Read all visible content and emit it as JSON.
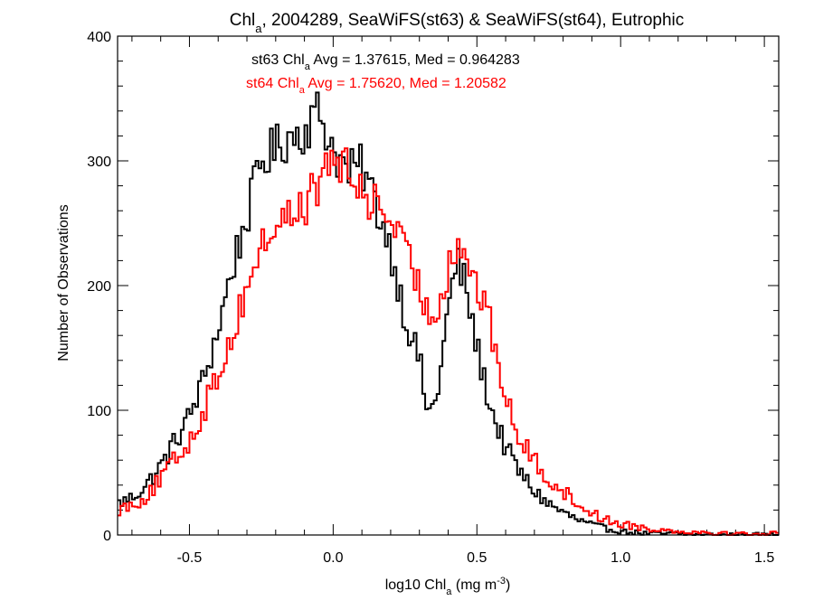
{
  "chart_data": {
    "type": "histogram-step",
    "title": {
      "pre": "Chl",
      "sub": "a",
      "post": ", 2004289, SeaWiFS(st63) & SeaWiFS(st64), Eutrophic"
    },
    "xlabel": {
      "pre": "log10 Chl",
      "sub": "a",
      "mid": " (mg m",
      "sup": "-3",
      "post": ")"
    },
    "ylabel": "Number of Observations",
    "xlim": [
      -0.75,
      1.55
    ],
    "ylim": [
      0,
      400
    ],
    "xticks": [
      -0.5,
      0.0,
      0.5,
      1.0,
      1.5
    ],
    "xtick_labels": [
      "-0.5",
      "0.0",
      "0.5",
      "1.0",
      "1.5"
    ],
    "yticks": [
      0,
      100,
      200,
      300,
      400
    ],
    "ytick_labels": [
      "0",
      "100",
      "200",
      "300",
      "400"
    ],
    "bin_width": 0.01,
    "annotations": [
      {
        "pre": "st63 Chl",
        "sub": "a",
        "post": " Avg = 1.37615, Med = 0.964283",
        "color": "#000000"
      },
      {
        "pre": "st64 Chl",
        "sub": "a",
        "post": " Avg = 1.75620, Med = 1.20582",
        "color": "#ff0000"
      }
    ],
    "series": [
      {
        "color": "#000000",
        "x": [
          -0.75,
          -0.7,
          -0.65,
          -0.6,
          -0.55,
          -0.5,
          -0.45,
          -0.4,
          -0.35,
          -0.3,
          -0.25,
          -0.2,
          -0.15,
          -0.1,
          -0.05,
          0.0,
          0.05,
          0.1,
          0.15,
          0.2,
          0.25,
          0.3,
          0.33,
          0.36,
          0.4,
          0.43,
          0.46,
          0.5,
          0.55,
          0.6,
          0.65,
          0.7,
          0.75,
          0.8,
          0.85,
          0.9,
          0.95,
          1.0,
          1.05,
          1.1,
          1.2,
          1.3,
          1.4,
          1.55
        ],
        "y": [
          25,
          30,
          40,
          55,
          75,
          95,
          125,
          165,
          215,
          255,
          300,
          310,
          320,
          325,
          340,
          310,
          290,
          295,
          265,
          230,
          175,
          140,
          95,
          110,
          180,
          220,
          200,
          150,
          100,
          70,
          50,
          35,
          25,
          18,
          12,
          8,
          5,
          3,
          2,
          1,
          1,
          0,
          0,
          0
        ]
      },
      {
        "color": "#ff0000",
        "x": [
          -0.75,
          -0.7,
          -0.65,
          -0.6,
          -0.55,
          -0.5,
          -0.45,
          -0.4,
          -0.35,
          -0.3,
          -0.25,
          -0.2,
          -0.15,
          -0.1,
          -0.05,
          0.0,
          0.05,
          0.1,
          0.15,
          0.2,
          0.25,
          0.3,
          0.33,
          0.36,
          0.4,
          0.43,
          0.46,
          0.5,
          0.55,
          0.6,
          0.65,
          0.7,
          0.75,
          0.8,
          0.85,
          0.9,
          0.95,
          1.0,
          1.05,
          1.1,
          1.2,
          1.3,
          1.4,
          1.55
        ],
        "y": [
          20,
          25,
          30,
          45,
          60,
          75,
          100,
          130,
          160,
          200,
          230,
          250,
          255,
          265,
          280,
          305,
          290,
          275,
          265,
          255,
          225,
          200,
          175,
          180,
          215,
          235,
          225,
          200,
          165,
          110,
          75,
          60,
          45,
          35,
          25,
          18,
          12,
          9,
          7,
          5,
          3,
          2,
          1,
          1
        ]
      }
    ]
  }
}
